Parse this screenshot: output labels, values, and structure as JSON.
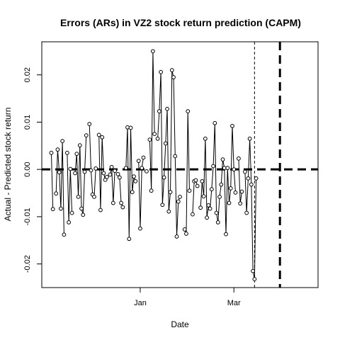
{
  "chart_data": {
    "type": "line",
    "title": "Errors (ARs) in VZ2 stock return prediction (CAPM)",
    "xlabel": "Date",
    "ylabel": "Actual - Predicted stock return",
    "x_ticks": [
      {
        "label": "Jan",
        "date": "2006-01-01"
      },
      {
        "label": "Mar",
        "date": "2006-03-01"
      }
    ],
    "xlim": [
      "2005-10-31",
      "2006-04-23"
    ],
    "ylim": [
      -0.025,
      0.027
    ],
    "y_ticks": [
      {
        "value": -0.02,
        "label": "-0.02"
      },
      {
        "value": -0.01,
        "label": "-0.01"
      },
      {
        "value": 0.0,
        "label": "0.00"
      },
      {
        "value": 0.01,
        "label": "0.01"
      },
      {
        "value": 0.02,
        "label": "0.02"
      }
    ],
    "reference_lines": [
      {
        "orientation": "horizontal",
        "value": 0.0,
        "style": "thick-dashed"
      },
      {
        "orientation": "vertical",
        "date": "2006-03-14",
        "style": "thin-dashed"
      },
      {
        "orientation": "vertical",
        "date": "2006-03-30",
        "style": "thick-dashed"
      }
    ],
    "series": [
      {
        "style": "line-with-open-circles",
        "points": [
          {
            "x": "2005-11-06",
            "y": 0.0035
          },
          {
            "x": "2005-11-07",
            "y": -0.0084
          },
          {
            "x": "2005-11-09",
            "y": -0.0051
          },
          {
            "x": "2005-11-10",
            "y": 0.0042
          },
          {
            "x": "2005-11-11",
            "y": -0.0006
          },
          {
            "x": "2005-11-12",
            "y": -0.0083
          },
          {
            "x": "2005-11-13",
            "y": 0.006
          },
          {
            "x": "2005-11-14",
            "y": -0.0138
          },
          {
            "x": "2005-11-16",
            "y": 0.0035
          },
          {
            "x": "2005-11-17",
            "y": -0.0112
          },
          {
            "x": "2005-11-18",
            "y": 0.0001
          },
          {
            "x": "2005-11-19",
            "y": -0.0092
          },
          {
            "x": "2005-11-21",
            "y": -0.0008
          },
          {
            "x": "2005-11-22",
            "y": 0.0033
          },
          {
            "x": "2005-11-23",
            "y": -0.0058
          },
          {
            "x": "2005-11-24",
            "y": 0.0051
          },
          {
            "x": "2005-11-25",
            "y": -0.0083
          },
          {
            "x": "2005-11-26",
            "y": -0.0096
          },
          {
            "x": "2005-11-27",
            "y": -0.0005
          },
          {
            "x": "2005-11-28",
            "y": 0.0072
          },
          {
            "x": "2005-11-30",
            "y": 0.0096
          },
          {
            "x": "2005-12-01",
            "y": -0.0002
          },
          {
            "x": "2005-12-02",
            "y": -0.0053
          },
          {
            "x": "2005-12-03",
            "y": -0.0058
          },
          {
            "x": "2005-12-04",
            "y": 0.0002
          },
          {
            "x": "2005-12-06",
            "y": 0.0073
          },
          {
            "x": "2005-12-07",
            "y": -0.0086
          },
          {
            "x": "2005-12-08",
            "y": 0.0068
          },
          {
            "x": "2005-12-09",
            "y": -0.0008
          },
          {
            "x": "2005-12-10",
            "y": -0.0022
          },
          {
            "x": "2005-12-11",
            "y": -0.0016
          },
          {
            "x": "2005-12-13",
            "y": -0.0011
          },
          {
            "x": "2005-12-14",
            "y": 0.0005
          },
          {
            "x": "2005-12-15",
            "y": -0.0071
          },
          {
            "x": "2005-12-16",
            "y": -0.0003
          },
          {
            "x": "2005-12-18",
            "y": -0.001
          },
          {
            "x": "2005-12-19",
            "y": -0.0017
          },
          {
            "x": "2005-12-20",
            "y": -0.0071
          },
          {
            "x": "2005-12-21",
            "y": -0.008
          },
          {
            "x": "2005-12-23",
            "y": 0.0003
          },
          {
            "x": "2005-12-24",
            "y": 0.0089
          },
          {
            "x": "2005-12-25",
            "y": -0.0147
          },
          {
            "x": "2005-12-26",
            "y": 0.0088
          },
          {
            "x": "2005-12-27",
            "y": -0.0048
          },
          {
            "x": "2005-12-28",
            "y": -0.0015
          },
          {
            "x": "2005-12-29",
            "y": -0.0025
          },
          {
            "x": "2005-12-31",
            "y": 0.0018
          },
          {
            "x": "2006-01-01",
            "y": -0.0125
          },
          {
            "x": "2006-01-02",
            "y": 0.0003
          },
          {
            "x": "2006-01-03",
            "y": 0.0025
          },
          {
            "x": "2006-01-05",
            "y": -0.0004
          },
          {
            "x": "2006-01-07",
            "y": 0.0063
          },
          {
            "x": "2006-01-08",
            "y": -0.0045
          },
          {
            "x": "2006-01-09",
            "y": 0.025
          },
          {
            "x": "2006-01-10",
            "y": 0.0075
          },
          {
            "x": "2006-01-12",
            "y": 0.0065
          },
          {
            "x": "2006-01-13",
            "y": 0.0123
          },
          {
            "x": "2006-01-14",
            "y": 0.0206
          },
          {
            "x": "2006-01-15",
            "y": -0.0075
          },
          {
            "x": "2006-01-16",
            "y": -0.0017
          },
          {
            "x": "2006-01-17",
            "y": 0.0055
          },
          {
            "x": "2006-01-18",
            "y": 0.0128
          },
          {
            "x": "2006-01-19",
            "y": -0.0089
          },
          {
            "x": "2006-01-20",
            "y": -0.0048
          },
          {
            "x": "2006-01-21",
            "y": 0.021
          },
          {
            "x": "2006-01-22",
            "y": 0.0195
          },
          {
            "x": "2006-01-23",
            "y": 0.0028
          },
          {
            "x": "2006-01-24",
            "y": -0.0142
          },
          {
            "x": "2006-01-25",
            "y": -0.0068
          },
          {
            "x": "2006-01-26",
            "y": -0.0058
          },
          {
            "x": "2006-01-29",
            "y": -0.0127
          },
          {
            "x": "2006-01-30",
            "y": -0.0136
          },
          {
            "x": "2006-01-31",
            "y": 0.0123
          },
          {
            "x": "2006-02-01",
            "y": -0.0045
          },
          {
            "x": "2006-02-03",
            "y": -0.0095
          },
          {
            "x": "2006-02-04",
            "y": -0.0025
          },
          {
            "x": "2006-02-05",
            "y": -0.0023
          },
          {
            "x": "2006-02-06",
            "y": -0.0035
          },
          {
            "x": "2006-02-08",
            "y": -0.0081
          },
          {
            "x": "2006-02-09",
            "y": -0.0025
          },
          {
            "x": "2006-02-10",
            "y": -0.0057
          },
          {
            "x": "2006-02-11",
            "y": 0.0065
          },
          {
            "x": "2006-02-12",
            "y": -0.0102
          },
          {
            "x": "2006-02-13",
            "y": -0.0076
          },
          {
            "x": "2006-02-14",
            "y": -0.0083
          },
          {
            "x": "2006-02-15",
            "y": -0.0042
          },
          {
            "x": "2006-02-16",
            "y": 0.0007
          },
          {
            "x": "2006-02-17",
            "y": 0.0098
          },
          {
            "x": "2006-02-18",
            "y": -0.0092
          },
          {
            "x": "2006-02-19",
            "y": -0.0112
          },
          {
            "x": "2006-02-20",
            "y": -0.0058
          },
          {
            "x": "2006-02-21",
            "y": -0.0032
          },
          {
            "x": "2006-02-22",
            "y": 0.0021
          },
          {
            "x": "2006-02-23",
            "y": 0.0003
          },
          {
            "x": "2006-02-24",
            "y": -0.0137
          },
          {
            "x": "2006-02-25",
            "y": 0.0003
          },
          {
            "x": "2006-02-26",
            "y": -0.0071
          },
          {
            "x": "2006-02-27",
            "y": -0.004
          },
          {
            "x": "2006-02-28",
            "y": 0.0092
          },
          {
            "x": "2006-03-01",
            "y": 0.0
          },
          {
            "x": "2006-03-02",
            "y": -0.0049
          },
          {
            "x": "2006-03-04",
            "y": 0.0023
          },
          {
            "x": "2006-03-05",
            "y": -0.0072
          },
          {
            "x": "2006-03-06",
            "y": -0.0047
          },
          {
            "x": "2006-03-08",
            "y": -0.0005
          },
          {
            "x": "2006-03-09",
            "y": -0.0092
          },
          {
            "x": "2006-03-10",
            "y": -0.0019
          },
          {
            "x": "2006-03-11",
            "y": 0.0065
          },
          {
            "x": "2006-03-12",
            "y": -0.0032
          },
          {
            "x": "2006-03-13",
            "y": -0.0215
          },
          {
            "x": "2006-03-14",
            "y": -0.0232
          },
          {
            "x": "2006-03-15",
            "y": -0.0019
          }
        ]
      }
    ]
  }
}
